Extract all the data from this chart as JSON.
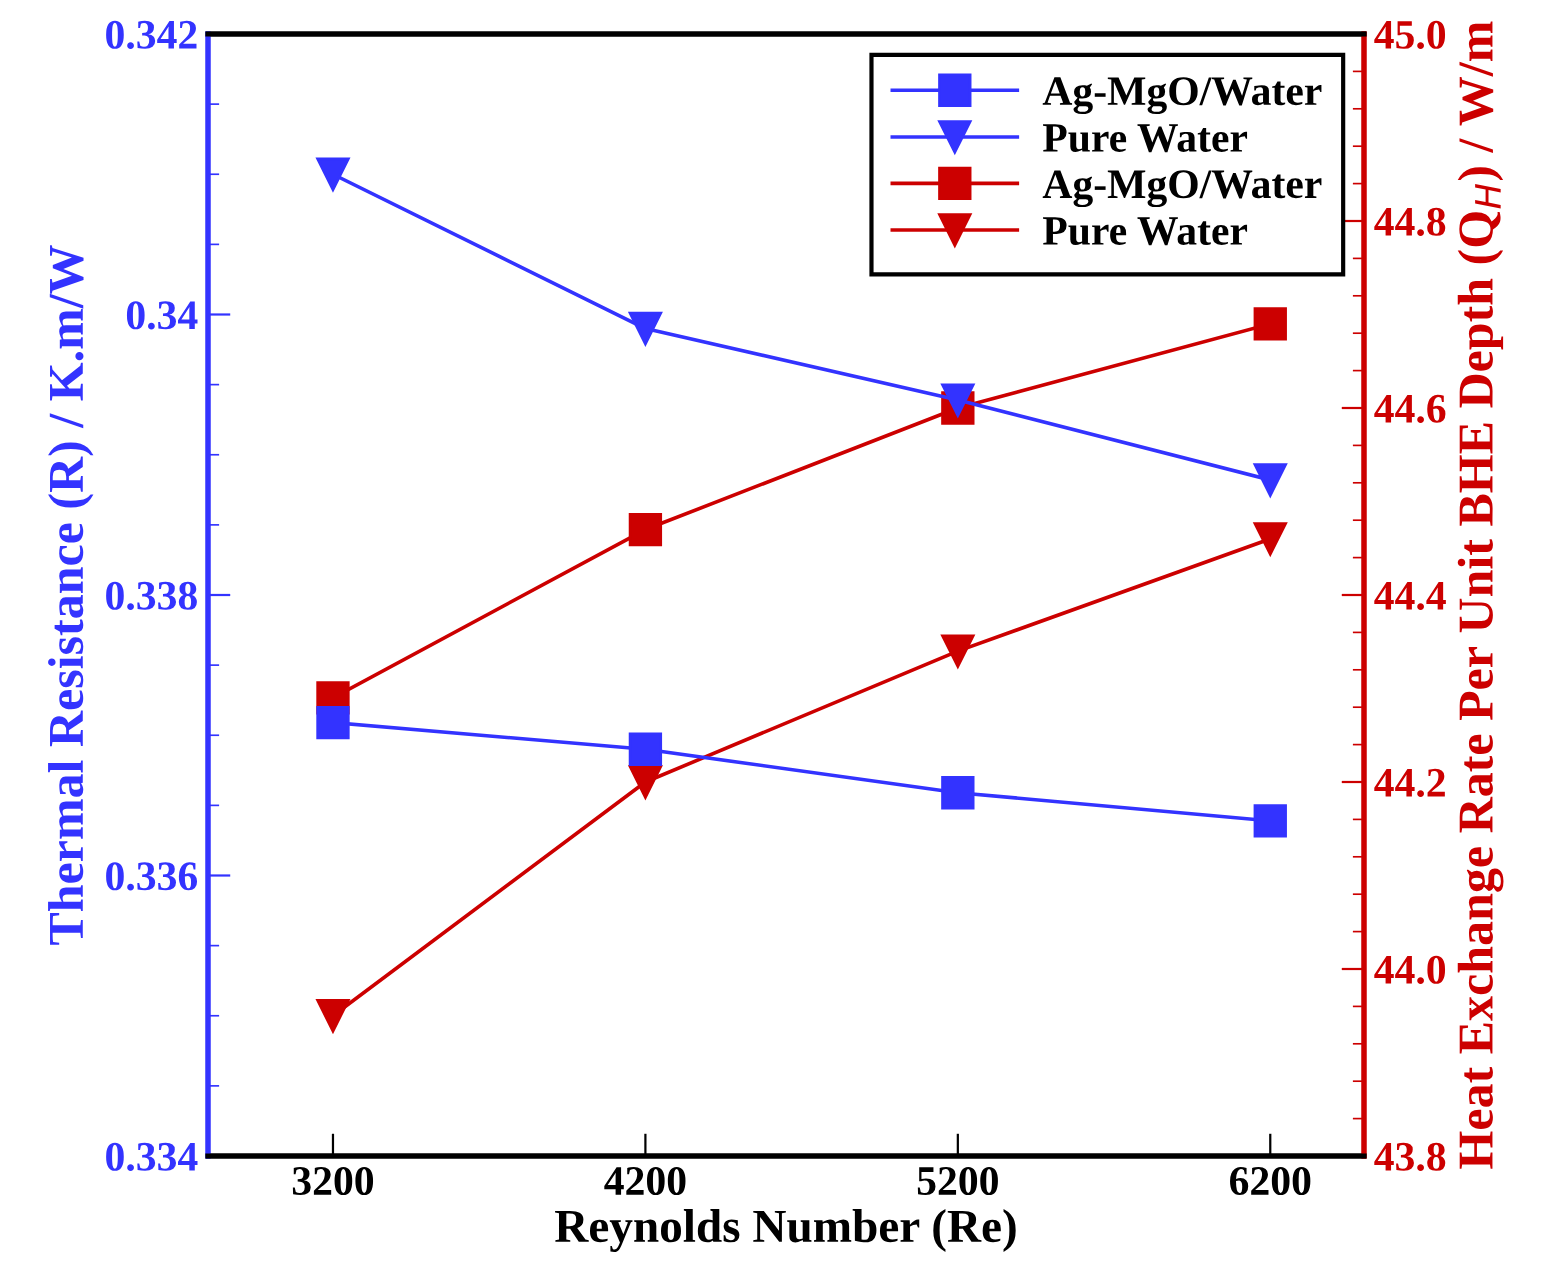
{
  "chart_data": {
    "type": "line",
    "xlabel": "Reynolds Number (Re)",
    "ylabel": "Thermal Resistance (R) / K.m/W",
    "y2label": "Heat Exchange Rate Per Unit BHE Depth (Q$_{H}$) / W/m",
    "x": [
      3200,
      4200,
      5200,
      6200
    ],
    "xlim": [
      2800,
      6500
    ],
    "xticks": [
      3200,
      4200,
      5200,
      6200
    ],
    "ylim": [
      0.334,
      0.342
    ],
    "yticks": [
      0.334,
      0.336,
      0.338,
      0.34,
      0.342
    ],
    "y2lim": [
      43.8,
      45.0
    ],
    "y2ticks": [
      {
        "value": 43.8,
        "label": "43.8"
      },
      {
        "value": 44.0,
        "label": "44.0"
      },
      {
        "value": 44.2,
        "label": "44.2"
      },
      {
        "value": 44.4,
        "label": "44.4"
      },
      {
        "value": 44.6,
        "label": "44.6"
      },
      {
        "value": 44.8,
        "label": "44.8"
      },
      {
        "value": 45.0,
        "label": "45.0"
      }
    ],
    "series": [
      {
        "name": "Ag-MgO/Water",
        "color": "#3333ff",
        "marker": "square",
        "values": [
          0.33709,
          0.3369,
          0.33659,
          0.33639
        ]
      },
      {
        "name": "Pure Water",
        "color": "#3333ff",
        "marker": "triangle",
        "values": [
          0.341,
          0.3399,
          0.33939,
          0.33882
        ]
      },
      {
        "name": "Ag-MgO/Water",
        "color": "#cc0000",
        "marker": "square",
        "axis": "y2",
        "values": [
          44.29,
          44.47,
          44.6,
          44.69
        ]
      },
      {
        "name": "Pure Water",
        "color": "#cc0000",
        "marker": "triangle",
        "axis": "y2",
        "values": [
          43.95,
          44.2,
          44.34,
          44.46
        ]
      }
    ],
    "legend": "top right",
    "grid": false
  }
}
